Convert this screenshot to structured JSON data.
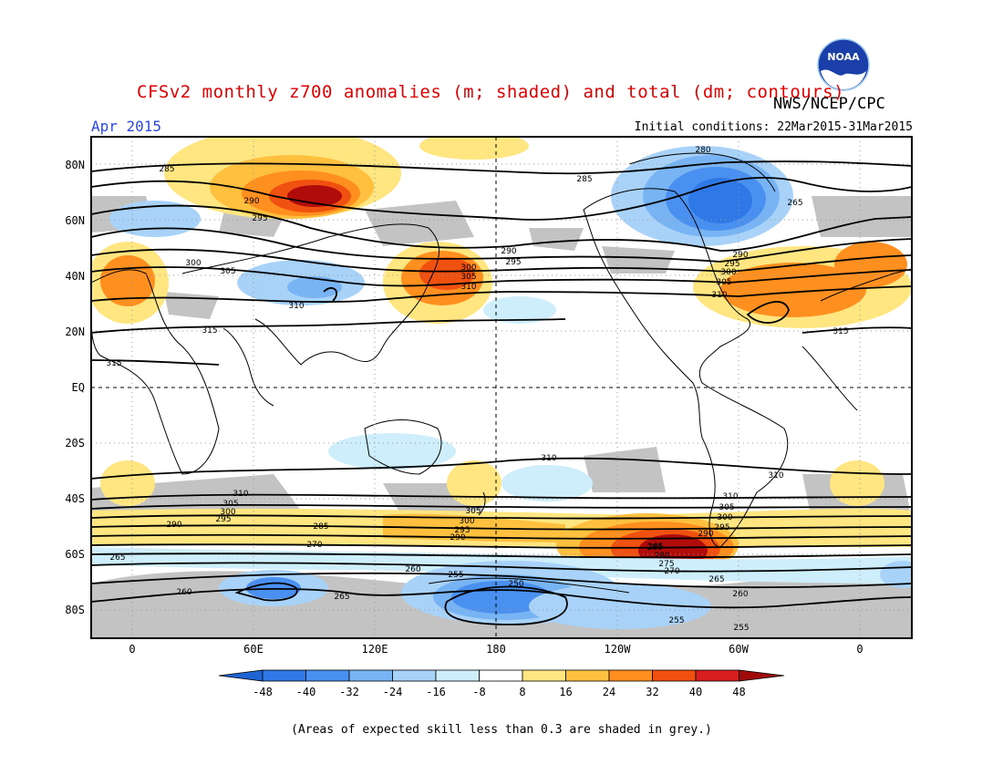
{
  "header": {
    "title": "CFSv2 monthly z700 anomalies (m; shaded) and total (dm; contours)",
    "org": "NWS/NCEP/CPC",
    "month": "Apr 2015",
    "initial_conditions": "Initial conditions: 22Mar2015-31Mar2015",
    "logo_text": "NOAA"
  },
  "map": {
    "lat_labels": [
      "80N",
      "60N",
      "40N",
      "20N",
      "EQ",
      "20S",
      "40S",
      "60S",
      "80S"
    ],
    "lon_labels": [
      "0",
      "60E",
      "120E",
      "180",
      "120W",
      "60W",
      "0"
    ],
    "contour_labels": [
      {
        "v": "285"
      },
      {
        "v": "290"
      },
      {
        "v": "295"
      },
      {
        "v": "300"
      },
      {
        "v": "305"
      },
      {
        "v": "310"
      },
      {
        "v": "315"
      },
      {
        "v": "315"
      },
      {
        "v": "315"
      },
      {
        "v": "290"
      },
      {
        "v": "295"
      },
      {
        "v": "300"
      },
      {
        "v": "305"
      },
      {
        "v": "310"
      },
      {
        "v": "280"
      },
      {
        "v": "285"
      },
      {
        "v": "265"
      },
      {
        "v": "290"
      },
      {
        "v": "295"
      },
      {
        "v": "300"
      },
      {
        "v": "305"
      },
      {
        "v": "310"
      },
      {
        "v": "310"
      },
      {
        "v": "310"
      },
      {
        "v": "305"
      },
      {
        "v": "300"
      },
      {
        "v": "295"
      },
      {
        "v": "290"
      },
      {
        "v": "285"
      },
      {
        "v": "270"
      },
      {
        "v": "265"
      },
      {
        "v": "260"
      },
      {
        "v": "255"
      },
      {
        "v": "250"
      },
      {
        "v": "265"
      },
      {
        "v": "260"
      },
      {
        "v": "255"
      },
      {
        "v": "255"
      },
      {
        "v": "310"
      },
      {
        "v": "305"
      },
      {
        "v": "300"
      },
      {
        "v": "295"
      },
      {
        "v": "290"
      },
      {
        "v": "285"
      },
      {
        "v": "280"
      },
      {
        "v": "275"
      },
      {
        "v": "270"
      },
      {
        "v": "310"
      },
      {
        "v": "305"
      },
      {
        "v": "300"
      },
      {
        "v": "295"
      },
      {
        "v": "290"
      },
      {
        "v": "285"
      },
      {
        "v": "265"
      },
      {
        "v": "260"
      }
    ]
  },
  "colorbar": {
    "tick_labels": [
      "-48",
      "-40",
      "-32",
      "-24",
      "-16",
      "-8",
      "8",
      "16",
      "24",
      "32",
      "40",
      "48"
    ],
    "colors": [
      "#1e64d2",
      "#2e78e8",
      "#4a90f0",
      "#78b4f4",
      "#a8d2f8",
      "#cdeefa",
      "#ffffff",
      "#ffe680",
      "#ffc040",
      "#ff9020",
      "#f05010",
      "#d81e1e",
      "#a00a0a"
    ]
  },
  "footnote": "(Areas of expected skill less than 0.3 are shaded in grey.)",
  "colors": {
    "title": "#e00000",
    "month": "#2a48e8",
    "skill_grey": "#c0c0c0"
  }
}
